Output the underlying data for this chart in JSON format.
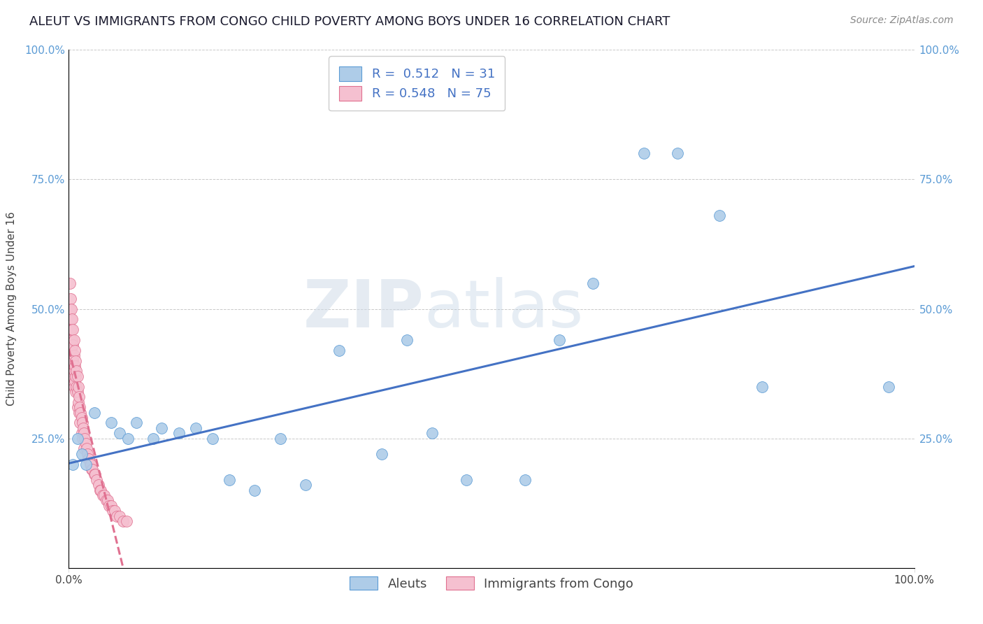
{
  "title": "ALEUT VS IMMIGRANTS FROM CONGO CHILD POVERTY AMONG BOYS UNDER 16 CORRELATION CHART",
  "source": "Source: ZipAtlas.com",
  "ylabel": "Child Poverty Among Boys Under 16",
  "legend_labels": [
    "Aleuts",
    "Immigrants from Congo"
  ],
  "blue_R": "0.512",
  "blue_N": "31",
  "pink_R": "0.548",
  "pink_N": "75",
  "aleut_color": "#aecce8",
  "aleut_edge_color": "#5b9bd5",
  "congo_color": "#f5c0d0",
  "congo_edge_color": "#e07090",
  "aleut_line_color": "#4472c4",
  "congo_line_color": "#e07090",
  "watermark_zip": "ZIP",
  "watermark_atlas": "atlas",
  "aleut_x": [
    0.005,
    0.01,
    0.015,
    0.02,
    0.03,
    0.05,
    0.06,
    0.07,
    0.08,
    0.1,
    0.11,
    0.13,
    0.15,
    0.17,
    0.19,
    0.22,
    0.25,
    0.28,
    0.32,
    0.37,
    0.4,
    0.43,
    0.47,
    0.54,
    0.58,
    0.62,
    0.68,
    0.72,
    0.77,
    0.82,
    0.97
  ],
  "aleut_y": [
    0.2,
    0.25,
    0.22,
    0.2,
    0.3,
    0.28,
    0.26,
    0.25,
    0.28,
    0.25,
    0.27,
    0.26,
    0.27,
    0.25,
    0.17,
    0.15,
    0.25,
    0.16,
    0.42,
    0.22,
    0.44,
    0.26,
    0.17,
    0.17,
    0.44,
    0.55,
    0.8,
    0.8,
    0.68,
    0.35,
    0.35
  ],
  "congo_x": [
    0.001,
    0.001,
    0.001,
    0.001,
    0.001,
    0.002,
    0.002,
    0.002,
    0.003,
    0.003,
    0.003,
    0.004,
    0.004,
    0.004,
    0.005,
    0.005,
    0.005,
    0.005,
    0.006,
    0.006,
    0.006,
    0.006,
    0.007,
    0.007,
    0.007,
    0.008,
    0.008,
    0.008,
    0.009,
    0.009,
    0.01,
    0.01,
    0.01,
    0.011,
    0.011,
    0.012,
    0.012,
    0.013,
    0.013,
    0.014,
    0.015,
    0.015,
    0.016,
    0.016,
    0.017,
    0.018,
    0.018,
    0.019,
    0.02,
    0.021,
    0.022,
    0.023,
    0.024,
    0.025,
    0.026,
    0.027,
    0.028,
    0.03,
    0.031,
    0.033,
    0.035,
    0.037,
    0.038,
    0.04,
    0.042,
    0.044,
    0.046,
    0.048,
    0.05,
    0.052,
    0.054,
    0.057,
    0.06,
    0.064,
    0.068
  ],
  "congo_y": [
    0.55,
    0.5,
    0.46,
    0.42,
    0.38,
    0.52,
    0.48,
    0.44,
    0.5,
    0.46,
    0.42,
    0.48,
    0.44,
    0.4,
    0.46,
    0.43,
    0.4,
    0.37,
    0.44,
    0.41,
    0.38,
    0.35,
    0.42,
    0.39,
    0.36,
    0.4,
    0.37,
    0.34,
    0.38,
    0.35,
    0.37,
    0.34,
    0.31,
    0.35,
    0.32,
    0.33,
    0.3,
    0.31,
    0.28,
    0.3,
    0.29,
    0.26,
    0.28,
    0.25,
    0.27,
    0.26,
    0.23,
    0.25,
    0.24,
    0.23,
    0.22,
    0.21,
    0.21,
    0.2,
    0.2,
    0.19,
    0.19,
    0.18,
    0.18,
    0.17,
    0.16,
    0.15,
    0.15,
    0.14,
    0.14,
    0.13,
    0.13,
    0.12,
    0.12,
    0.11,
    0.11,
    0.1,
    0.1,
    0.09,
    0.09
  ],
  "xlim": [
    0,
    1.0
  ],
  "ylim": [
    0,
    1.0
  ],
  "background_color": "#ffffff",
  "grid_color": "#cccccc",
  "title_fontsize": 13,
  "axis_label_fontsize": 11,
  "tick_fontsize": 11,
  "legend_fontsize": 13
}
